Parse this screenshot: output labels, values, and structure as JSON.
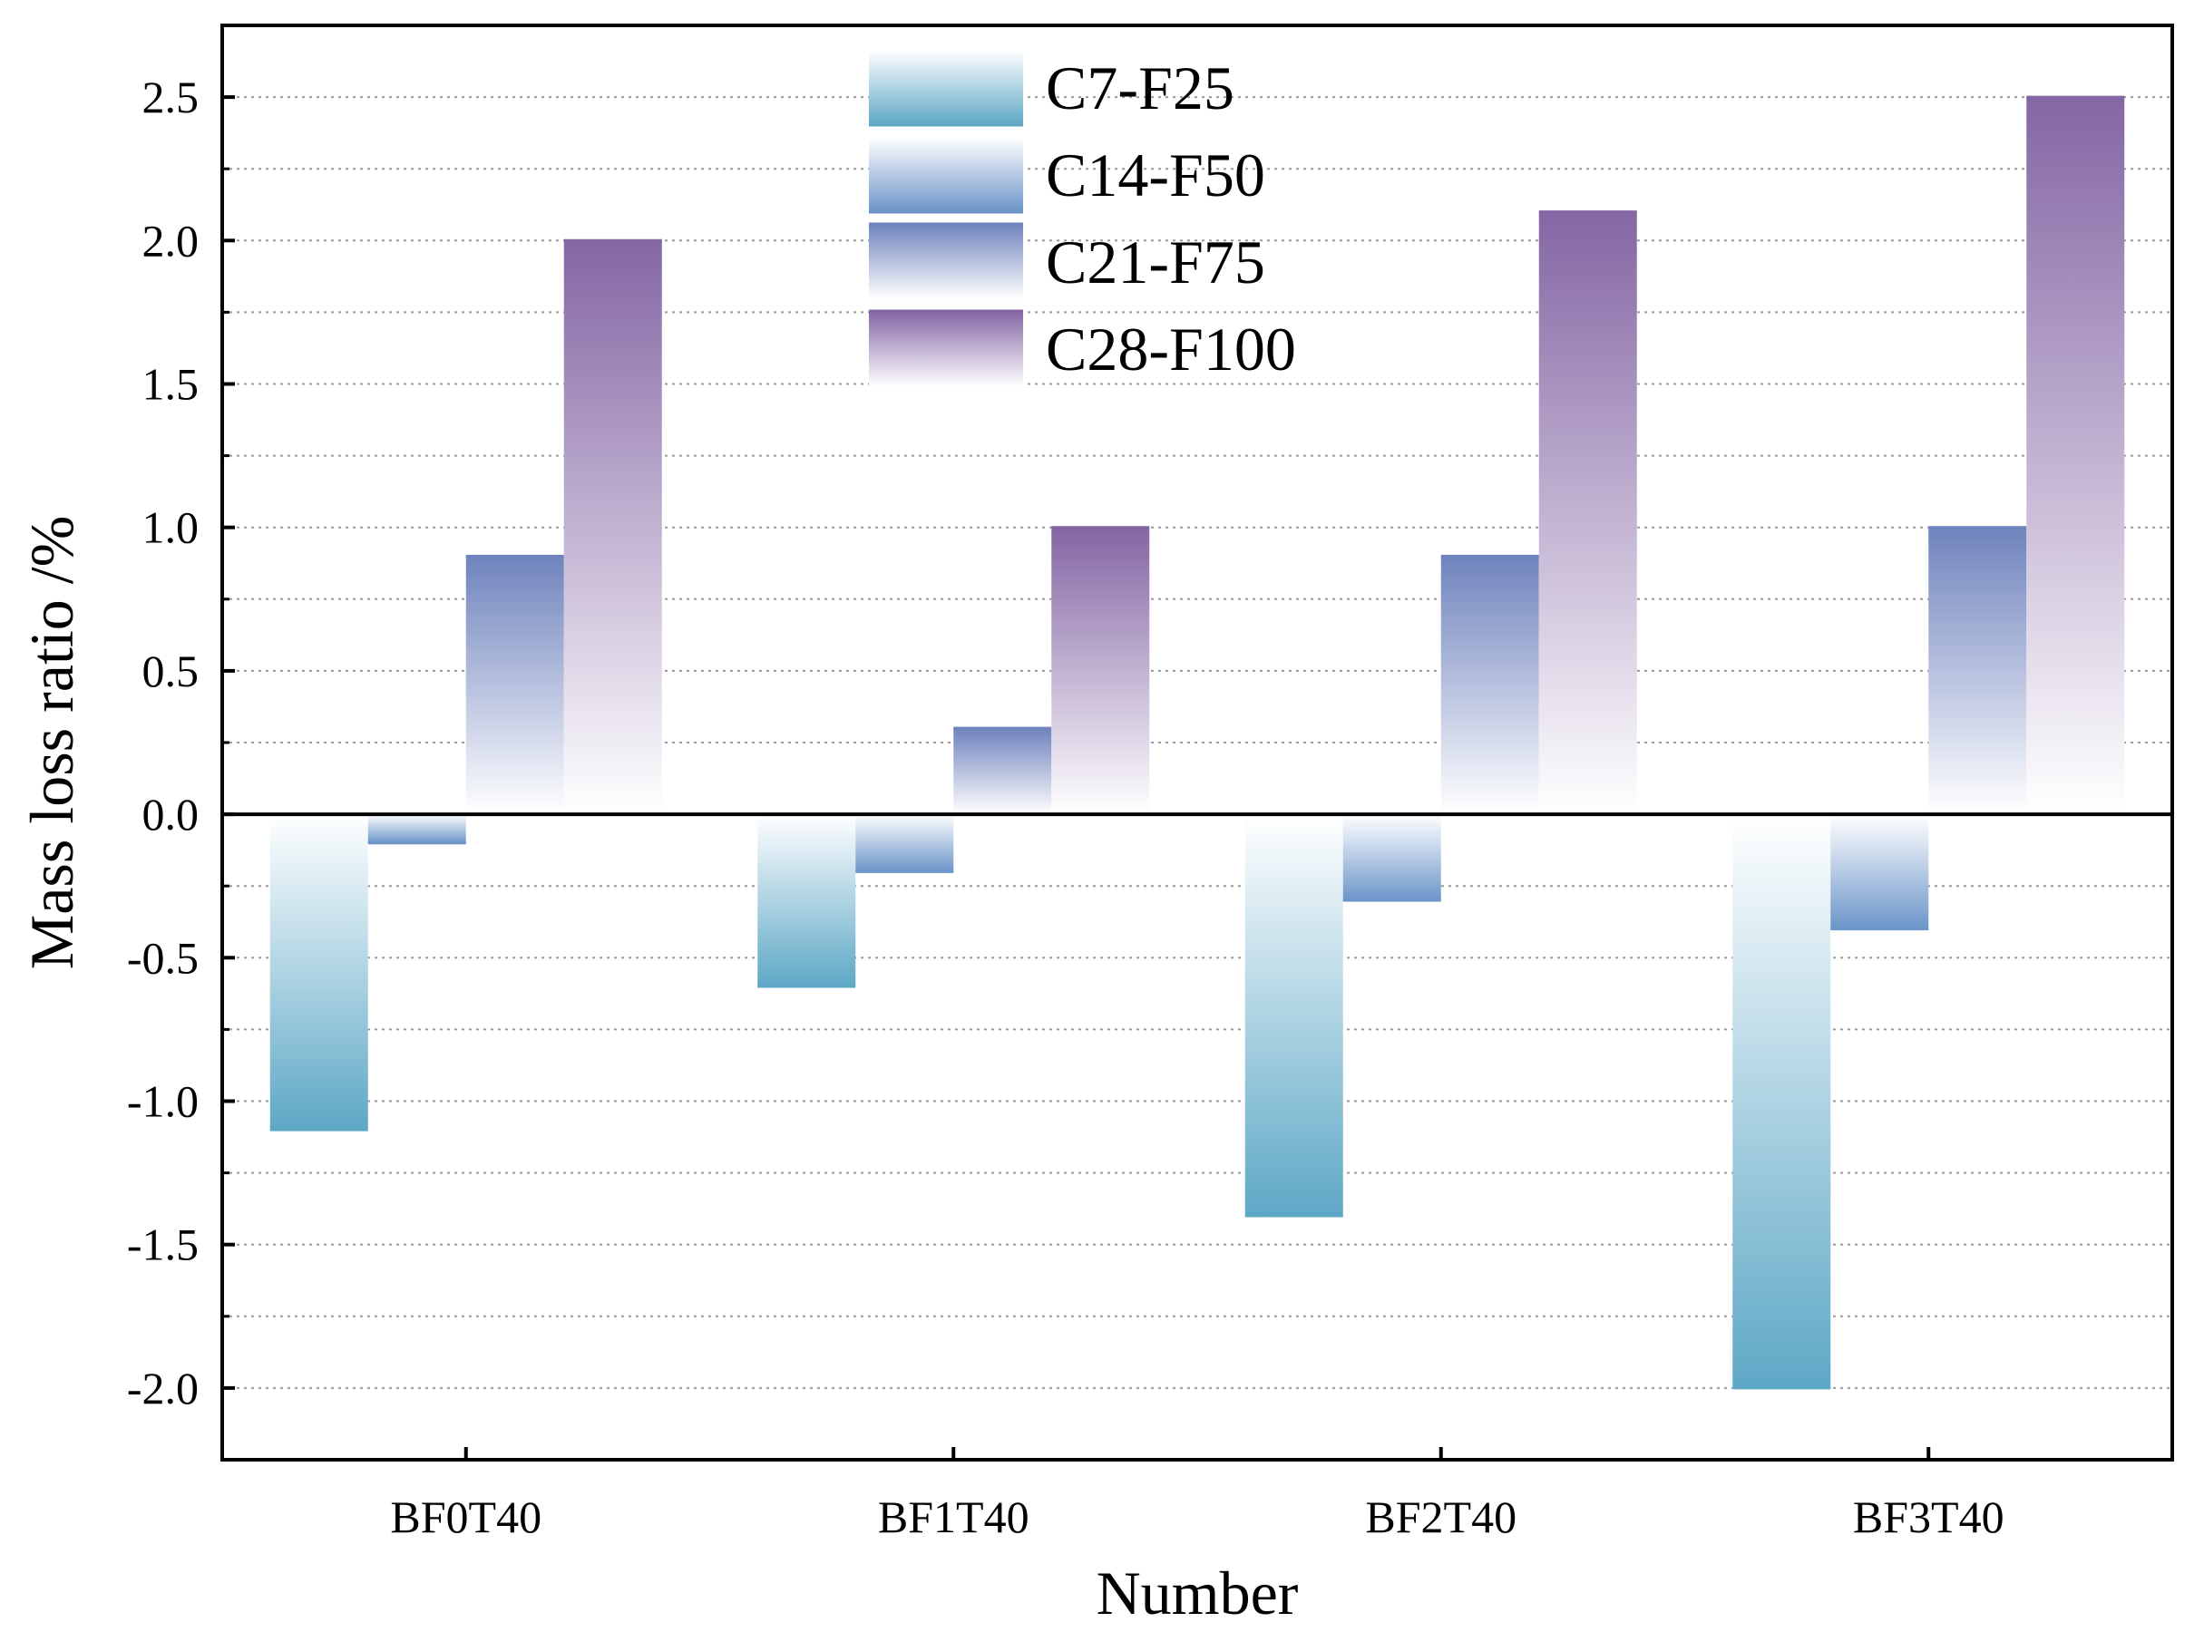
{
  "chart_data": {
    "type": "bar",
    "title": "",
    "xlabel": "Number",
    "ylabel": "Mass loss ratio /%",
    "categories": [
      "BF0T40",
      "BF1T40",
      "BF2T40",
      "BF3T40"
    ],
    "series": [
      {
        "name": "C7-F25",
        "values": [
          -1.1,
          -0.6,
          -1.4,
          -2.0
        ],
        "color": "#5ea8c6"
      },
      {
        "name": "C14-F50",
        "values": [
          -0.1,
          -0.2,
          -0.3,
          -0.4
        ],
        "color": "#6c95c9"
      },
      {
        "name": "C21-F75",
        "values": [
          0.9,
          0.3,
          0.9,
          1.0
        ],
        "color": "#6f83bd"
      },
      {
        "name": "C28-F100",
        "values": [
          2.0,
          1.0,
          2.1,
          2.5
        ],
        "color": "#8466a4"
      }
    ],
    "ylim": [
      -2.25,
      2.75
    ],
    "yticks": [
      "-2.0",
      "-1.5",
      "-1.0",
      "-0.5",
      "0.0",
      "0.5",
      "1.0",
      "1.5",
      "2.0",
      "2.5"
    ],
    "ytick_values": [
      -2.0,
      -1.5,
      -1.0,
      -0.5,
      0.0,
      0.5,
      1.0,
      1.5,
      2.0,
      2.5
    ],
    "grid": true,
    "legend_position": "top-center"
  }
}
